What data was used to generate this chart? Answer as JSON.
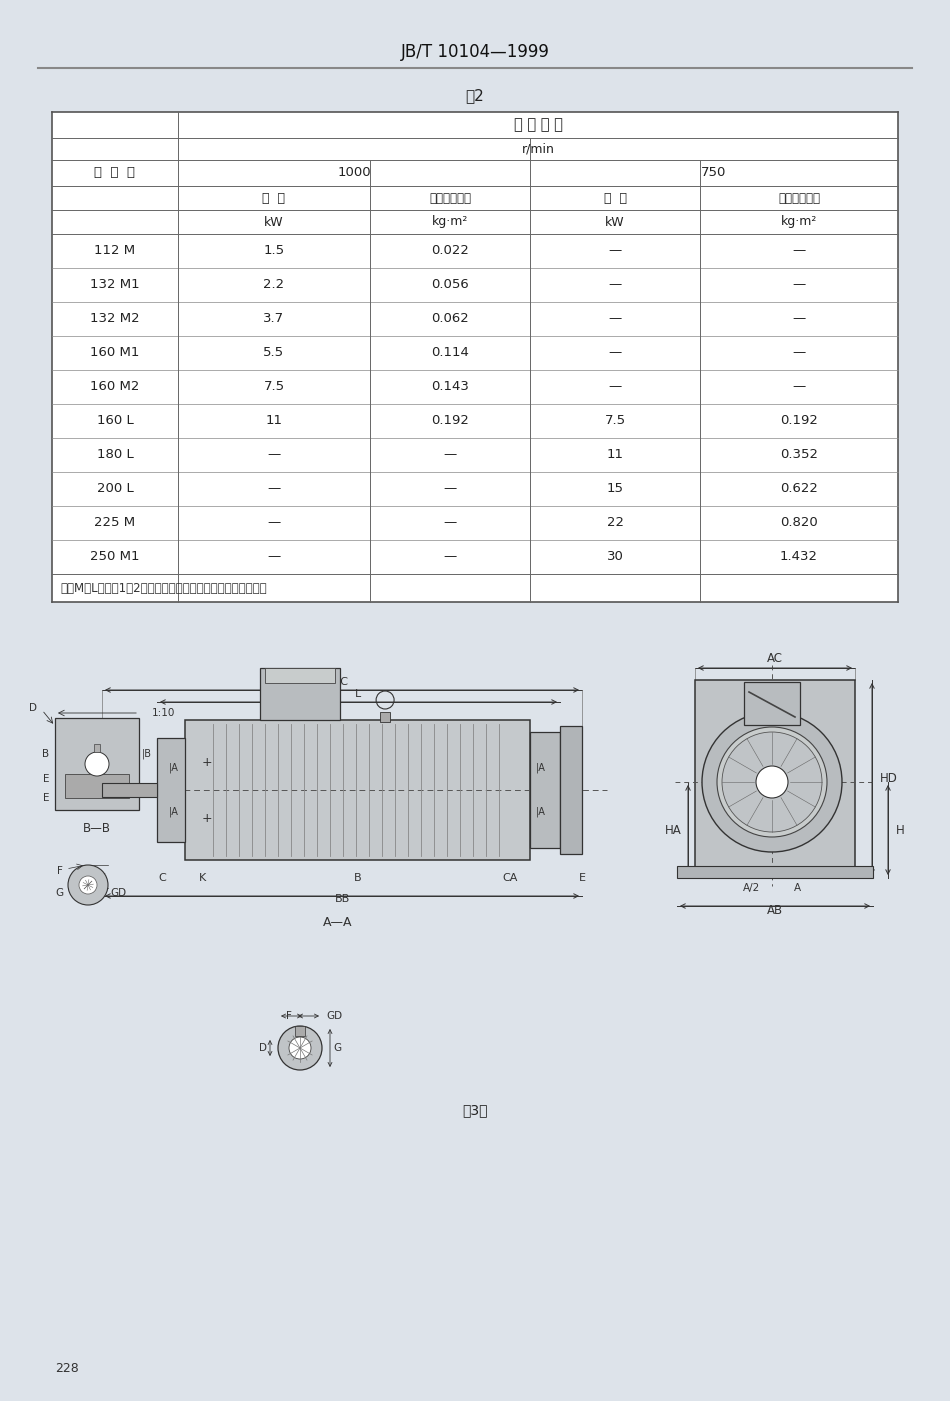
{
  "page_title": "JB/T 10104—1999",
  "table_title": "表2",
  "bg_color": "#dde3ea",
  "table": {
    "rows": [
      [
        "112 M",
        "1.5",
        "0.022",
        "—",
        "—"
      ],
      [
        "132 M1",
        "2.2",
        "0.056",
        "—",
        "—"
      ],
      [
        "132 M2",
        "3.7",
        "0.062",
        "—",
        "—"
      ],
      [
        "160 M1",
        "5.5",
        "0.114",
        "—",
        "—"
      ],
      [
        "160 M2",
        "7.5",
        "0.143",
        "—",
        "—"
      ],
      [
        "160 L",
        "11",
        "0.192",
        "7.5",
        "0.192"
      ],
      [
        "180 L",
        "—",
        "—",
        "11",
        "0.352"
      ],
      [
        "200 L",
        "—",
        "—",
        "15",
        "0.622"
      ],
      [
        "225 M",
        "—",
        "—",
        "22",
        "0.820"
      ],
      [
        "250 M1",
        "—",
        "—",
        "30",
        "1.432"
      ]
    ],
    "note": "注：M、L后面的1、2分别代表同一机座号和转速下不同功率。",
    "h1": "同 步 转 速",
    "h2": "r/min",
    "h3_1000": "1000",
    "h3_750": "750",
    "h4a": "功  率",
    "h4b": "转子转动惯量",
    "h5a": "kW",
    "h5b": "kg·m²",
    "h0": "机  座  号"
  },
  "diagram_caption": "表3图",
  "page_number": "228",
  "lc": "#444444",
  "tc": "#222222",
  "dim_c": "#333333",
  "draw_c": "#555555",
  "motor_fill": "#c8cccc",
  "bg_draw": "#dde3ea"
}
